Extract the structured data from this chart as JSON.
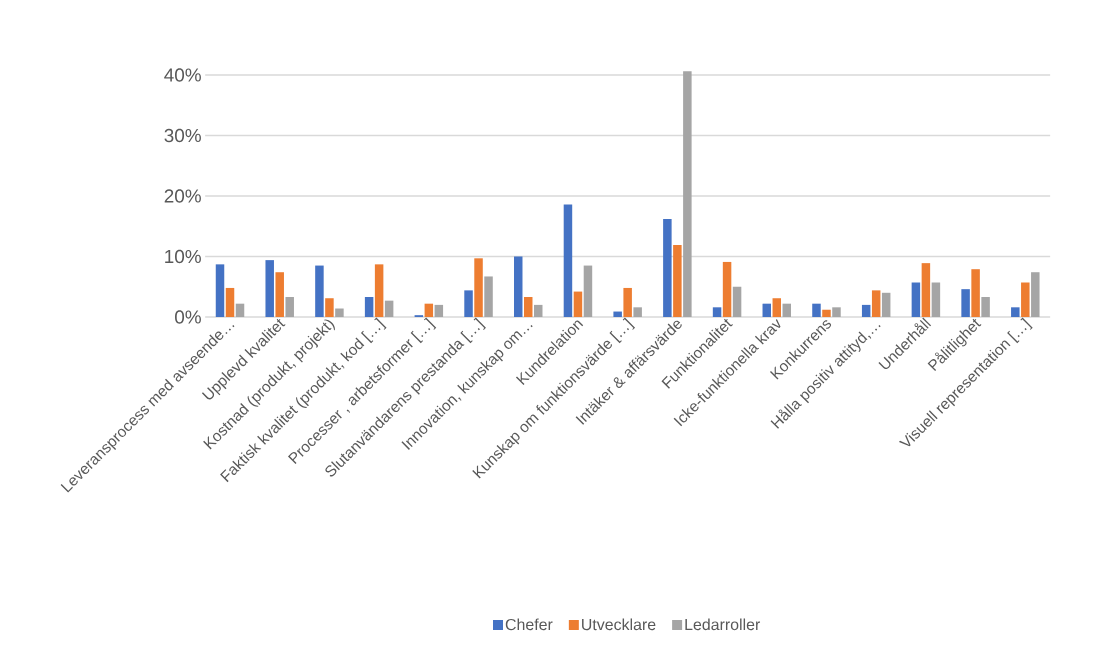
{
  "chart_data": {
    "type": "bar",
    "categories": [
      "Leveransprocess med avseende…",
      "Upplevd kvalitet",
      "Kostnad (produkt, projekt)",
      "Faktisk kvalitet (produkt, kod […]",
      "Processer , arbetsformer […]",
      "Slutanvändarens prestanda […]",
      "Innovation, kunskap om…",
      "Kundrelation",
      "Kunskap om funktionsvärde […]",
      "Intäker & affärsvärde",
      "Funktionalitet",
      "Icke-funktionella krav",
      "Konkurrens",
      "Hålla positiv attityd,…",
      "Underhåll",
      "Pålitlighet",
      "Visuell representation […]"
    ],
    "series": [
      {
        "name": "Chefer",
        "color": "#4472c4",
        "values": [
          8.7,
          9.4,
          8.5,
          3.3,
          0.3,
          4.4,
          10.0,
          18.6,
          0.9,
          16.2,
          1.6,
          2.2,
          2.2,
          2.0,
          5.7,
          4.6,
          1.6
        ]
      },
      {
        "name": "Utvecklare",
        "color": "#ed7d31",
        "values": [
          4.8,
          7.4,
          3.1,
          8.7,
          2.2,
          9.7,
          3.3,
          4.2,
          4.8,
          11.9,
          9.1,
          3.1,
          1.2,
          4.4,
          8.9,
          7.9,
          5.7
        ]
      },
      {
        "name": "Ledarroller",
        "color": "#a5a5a5",
        "values": [
          2.2,
          3.3,
          1.4,
          2.7,
          2.0,
          6.7,
          2.0,
          8.5,
          1.6,
          40.6,
          5.0,
          2.2,
          1.6,
          4.0,
          5.7,
          3.3,
          7.4
        ]
      }
    ],
    "ylim": [
      0,
      41
    ],
    "yticks": [
      {
        "value": 0,
        "label": "0%"
      },
      {
        "value": 10,
        "label": "10%"
      },
      {
        "value": 20,
        "label": "20%"
      },
      {
        "value": 30,
        "label": "30%"
      },
      {
        "value": 40,
        "label": "40%"
      }
    ],
    "grid": "y",
    "legend": "bottom"
  }
}
